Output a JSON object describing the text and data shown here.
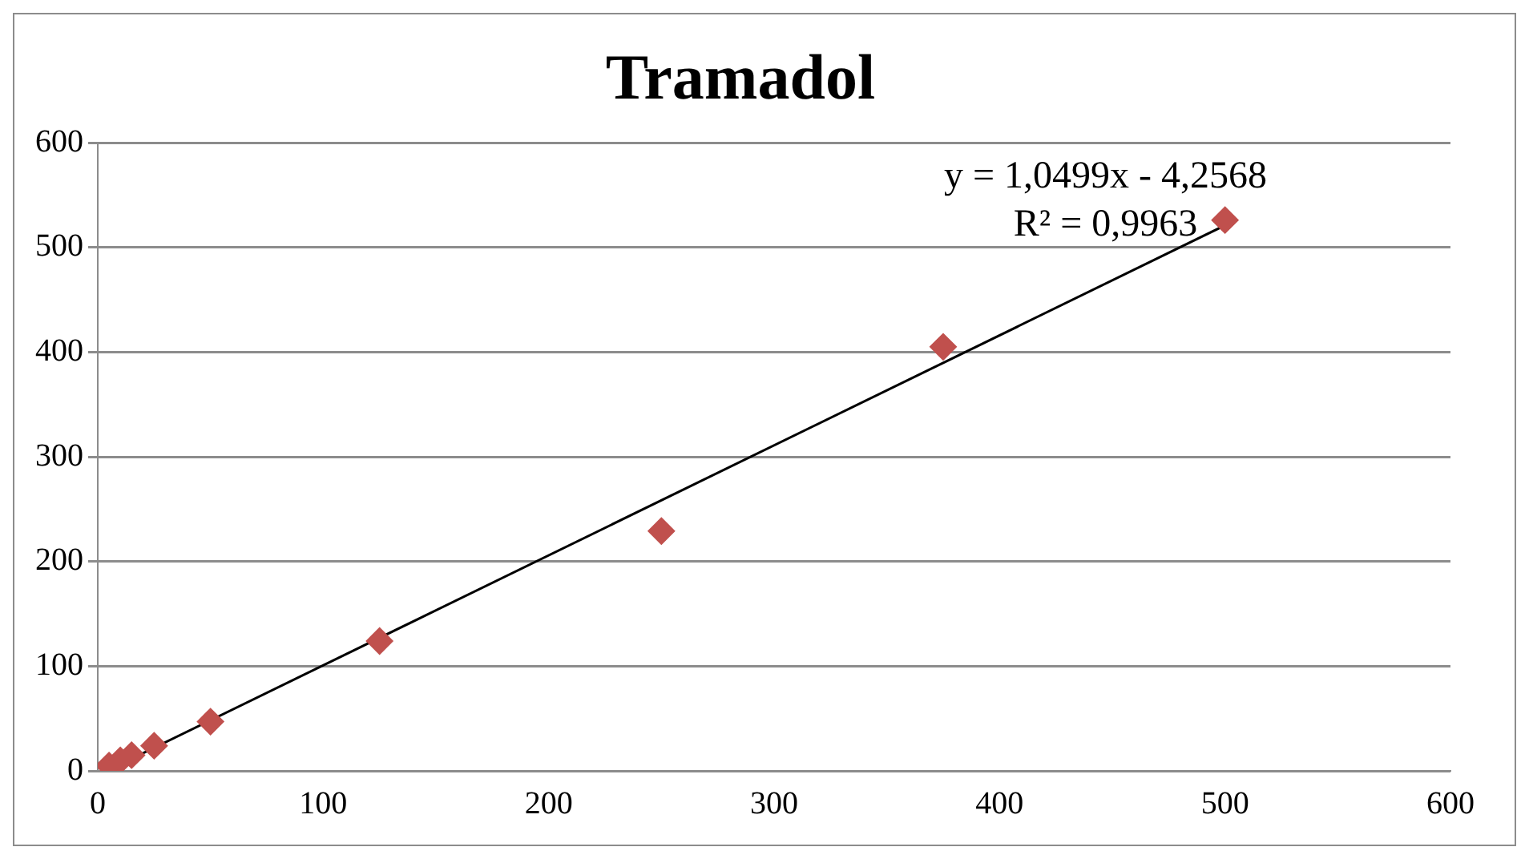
{
  "chart_data": {
    "type": "scatter",
    "title": "Tramadol",
    "marker": "diamond",
    "grid": "y",
    "legend": false,
    "xlim": [
      0,
      600
    ],
    "xticks": [
      0,
      100,
      200,
      300,
      400,
      500,
      600
    ],
    "ylim": [
      0,
      600
    ],
    "yticks": [
      0,
      100,
      200,
      300,
      400,
      500,
      600
    ],
    "annotations": [
      "y = 1,0499x - 4,2568",
      "R² = 0,9963"
    ],
    "series": [
      {
        "color": "#c0504d",
        "x": [
          5,
          10,
          15,
          25,
          50,
          125,
          250,
          375,
          500
        ],
        "values": [
          5,
          10,
          15,
          24,
          47,
          124,
          229,
          405,
          526
        ]
      },
      {
        "type": "line",
        "color": "#000000",
        "marker": "none",
        "x": [
          5,
          500
        ],
        "values": [
          1,
          521
        ]
      }
    ]
  }
}
